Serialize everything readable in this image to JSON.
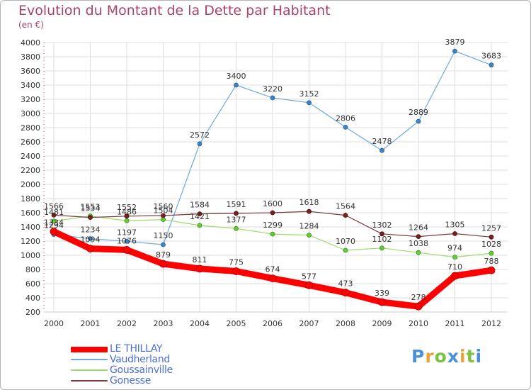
{
  "chart_data": {
    "type": "line",
    "title": "Evolution du Montant de la Dette par Habitant",
    "unit_label": "(en €)",
    "x": [
      "2000",
      "2001",
      "2002",
      "2003",
      "2004",
      "2005",
      "2006",
      "2007",
      "2008",
      "2009",
      "2010",
      "2011",
      "2012"
    ],
    "ylim": [
      200,
      4000
    ],
    "yticks": [
      200,
      400,
      600,
      800,
      1000,
      1200,
      1400,
      1600,
      1800,
      2000,
      2200,
      2400,
      2600,
      2800,
      3000,
      3200,
      3400,
      3600,
      3800,
      4000
    ],
    "grid": true,
    "legend_position": "bottom-left",
    "series": [
      {
        "name": "LE THILLAY",
        "color": "#ff0000",
        "values": [
          1334,
          1094,
          1076,
          879,
          811,
          775,
          674,
          577,
          473,
          339,
          278,
          710,
          788
        ],
        "labels": [
          "1334",
          "1094",
          "1076",
          "879",
          "811",
          "775",
          "674",
          "577",
          "473",
          "339",
          "278",
          "710",
          "788"
        ]
      },
      {
        "name": "Vaudherland",
        "color": "#6fa8dc",
        "values": [
          1294,
          1234,
          1197,
          1150,
          2572,
          3400,
          3220,
          3152,
          2806,
          2478,
          2889,
          3879,
          3683
        ],
        "labels": [
          "1294",
          "1234",
          "1197",
          "1150",
          "2572",
          "3400",
          "3220",
          "3152",
          "2806",
          "2478",
          "2889",
          "3879",
          "3683"
        ]
      },
      {
        "name": "Goussainville",
        "color": "#99dd66",
        "values": [
          1481,
          1553,
          1486,
          1504,
          1421,
          1377,
          1299,
          1284,
          1070,
          1102,
          1038,
          974,
          1028
        ],
        "labels": [
          "1481",
          "1553",
          "1486",
          "1504",
          "1421",
          "1377",
          "1299",
          "1284",
          "1070",
          "1102",
          "1038",
          "974",
          "1028"
        ]
      },
      {
        "name": "Gonesse",
        "color": "#7a3b3b",
        "values": [
          1566,
          1534,
          1552,
          1560,
          1584,
          1591,
          1600,
          1618,
          1564,
          1302,
          1264,
          1305,
          1257
        ],
        "labels": [
          "1566",
          "1534",
          "1552",
          "1560",
          "1584",
          "1591",
          "1600",
          "1618",
          "1564",
          "1302",
          "1264",
          "1305",
          "1257"
        ]
      }
    ]
  },
  "logo": {
    "text": "Proxiti",
    "colors": [
      "#4a90d9",
      "#e8a33c",
      "#7cc242",
      "#4a90d9",
      "#e8a33c",
      "#7cc242",
      "#4a90d9"
    ]
  }
}
